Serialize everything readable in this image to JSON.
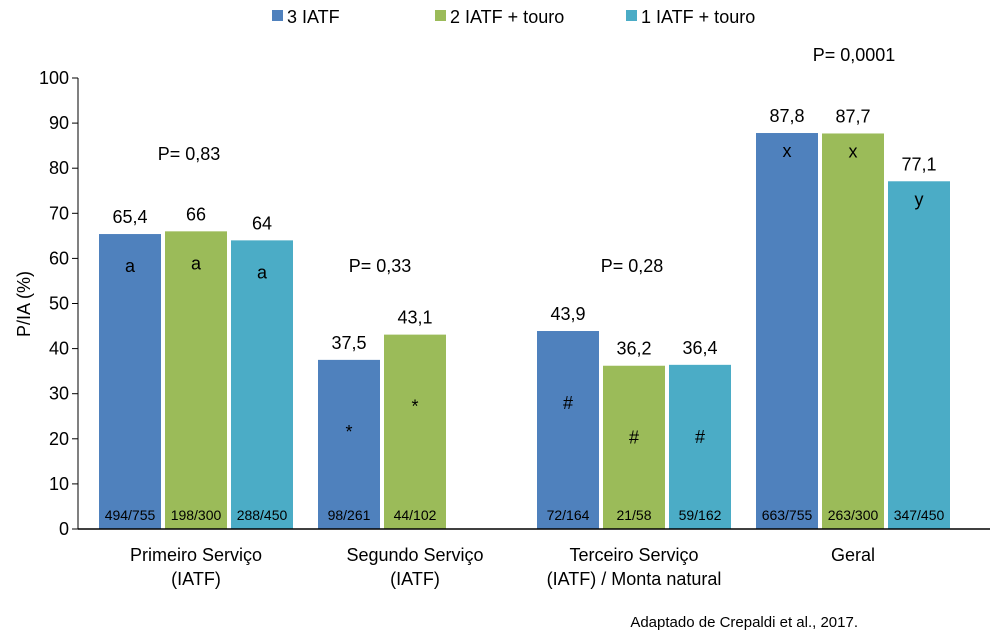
{
  "chart_data": {
    "type": "bar",
    "title": "",
    "ylabel": "P/IA (%)",
    "xlabel": "",
    "ylim": [
      0,
      100
    ],
    "yticks": [
      0,
      10,
      20,
      30,
      40,
      50,
      60,
      70,
      80,
      90,
      100
    ],
    "grid": false,
    "legend_position": "top",
    "categories": [
      [
        "Primeiro Serviço",
        "(IATF)"
      ],
      [
        "Segundo Serviço",
        "(IATF)"
      ],
      [
        "Terceiro Serviço",
        "(IATF) / Monta natural"
      ],
      [
        "Geral"
      ]
    ],
    "series": [
      {
        "name": "3 IATF",
        "color": "#4F81BD",
        "values": [
          65.4,
          37.5,
          43.9,
          87.8
        ],
        "value_labels": [
          "65,4",
          "37,5",
          "43,9",
          "87,8"
        ],
        "letters": [
          "a",
          "*",
          "#",
          "x"
        ],
        "counts": [
          "494/755",
          "98/261",
          "72/164",
          "663/755"
        ]
      },
      {
        "name": "2 IATF + touro",
        "color": "#9BBB59",
        "values": [
          66,
          43.1,
          36.2,
          87.7
        ],
        "value_labels": [
          "66",
          "43,1",
          "36,2",
          "87,7"
        ],
        "letters": [
          "a",
          "*",
          "#",
          "x"
        ],
        "counts": [
          "198/300",
          "44/102",
          "21/58",
          "263/300"
        ]
      },
      {
        "name": "1 IATF + touro",
        "color": "#4BACC6",
        "values": [
          64,
          null,
          36.4,
          77.1
        ],
        "value_labels": [
          "64",
          null,
          "36,4",
          "77,1"
        ],
        "letters": [
          "a",
          null,
          "#",
          "y"
        ],
        "counts": [
          "288/450",
          null,
          "59/162",
          "347/450"
        ]
      }
    ],
    "annotations": [
      "P= 0,83",
      "P= 0,33",
      "P= 0,28",
      "P= 0,0001"
    ]
  },
  "source_note": "Adaptado de Crepaldi et al., 2017."
}
